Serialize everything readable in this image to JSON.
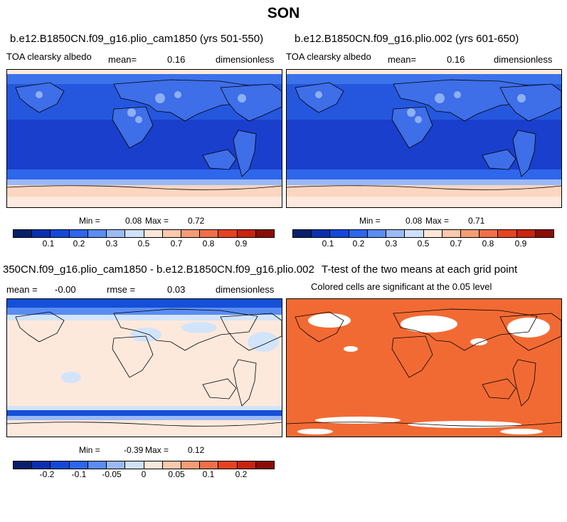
{
  "title": "SON",
  "panels": [
    {
      "title": "b.e12.B1850CN.f09_g16.plio_cam1850 (yrs 501-550)",
      "left_label": "TOA clearsky albedo",
      "mean_label": "mean=",
      "mean_value": "0.16",
      "units": "dimensionless",
      "min_label": "Min =",
      "min_value": "0.08",
      "max_label": "Max =",
      "max_value": "0.72",
      "colorbar_labels": [
        "0.1",
        "0.2",
        "0.3",
        "0.5",
        "0.7",
        "0.8",
        "0.9"
      ]
    },
    {
      "title": "b.e12.B1850CN.f09_g16.plio.002 (yrs 601-650)",
      "left_label": "TOA clearsky albedo",
      "mean_label": "mean=",
      "mean_value": "0.16",
      "units": "dimensionless",
      "min_label": "Min =",
      "min_value": "0.08",
      "max_label": "Max =",
      "max_value": "0.71",
      "colorbar_labels": [
        "0.1",
        "0.2",
        "0.3",
        "0.5",
        "0.7",
        "0.8",
        "0.9"
      ]
    },
    {
      "title": "350CN.f09_g16.plio_cam1850 - b.e12.B1850CN.f09_g16.plio.002",
      "left_label": "mean =",
      "mean_value": "-0.00",
      "rmse_label": "rmse =",
      "rmse_value": "0.03",
      "units": "dimensionless",
      "min_label": "Min =",
      "min_value": "-0.39",
      "max_label": "Max =",
      "max_value": "0.12",
      "colorbar_labels": [
        "-0.2",
        "-0.1",
        "-0.05",
        "0",
        "0.05",
        "0.1",
        "0.2"
      ]
    },
    {
      "title": "T-test of the two means at each grid point",
      "subtitle": "Colored cells are significant at the 0.05 level"
    }
  ],
  "colors": {
    "seq": [
      "#08206b",
      "#0a30b0",
      "#1448d8",
      "#2e66ec",
      "#5a8cf2",
      "#9ab9f6",
      "#cfe0fa",
      "#fde7da",
      "#fbc9ad",
      "#f59c74",
      "#f06f48",
      "#e54320",
      "#c82410",
      "#8a0c06"
    ],
    "ocean_deep": "#1a3fcc",
    "ocean_mid": "#2457de",
    "ocean_light": "#3c72ea",
    "land": "#3e6ee8",
    "land_bright": "#8db0f3",
    "ice": "#fcd6c0",
    "ice_pale": "#fde9de",
    "diff_bg": "#fde9dc",
    "diff_blue": "#d2e4fa",
    "diff_dark": "#1450d8",
    "sig": "#f26a33"
  }
}
